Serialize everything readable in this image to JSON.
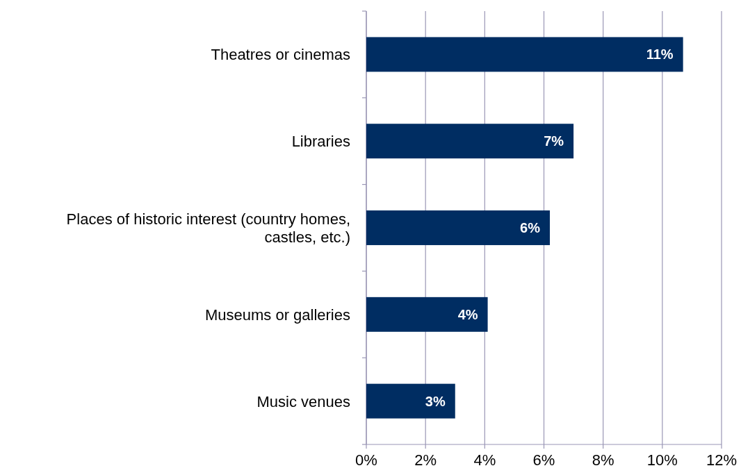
{
  "chart_data": {
    "type": "bar",
    "orientation": "horizontal",
    "categories": [
      "Theatres or cinemas",
      "Libraries",
      "Places of historic interest (country homes, castles, etc.)",
      "Museums or galleries",
      "Music venues"
    ],
    "values": [
      10.7,
      7.0,
      6.2,
      4.1,
      3.0
    ],
    "value_labels": [
      "11%",
      "7%",
      "6%",
      "4%",
      "3%"
    ],
    "color": "#002d62",
    "xlim": [
      0,
      12
    ],
    "xticks": [
      {
        "value": 0,
        "label": "0%"
      },
      {
        "value": 2,
        "label": "2%"
      },
      {
        "value": 4,
        "label": "4%"
      },
      {
        "value": 6,
        "label": "6%"
      },
      {
        "value": 8,
        "label": "8%"
      },
      {
        "value": 10,
        "label": "10%"
      },
      {
        "value": 12,
        "label": "12%"
      }
    ],
    "grid": "x"
  }
}
